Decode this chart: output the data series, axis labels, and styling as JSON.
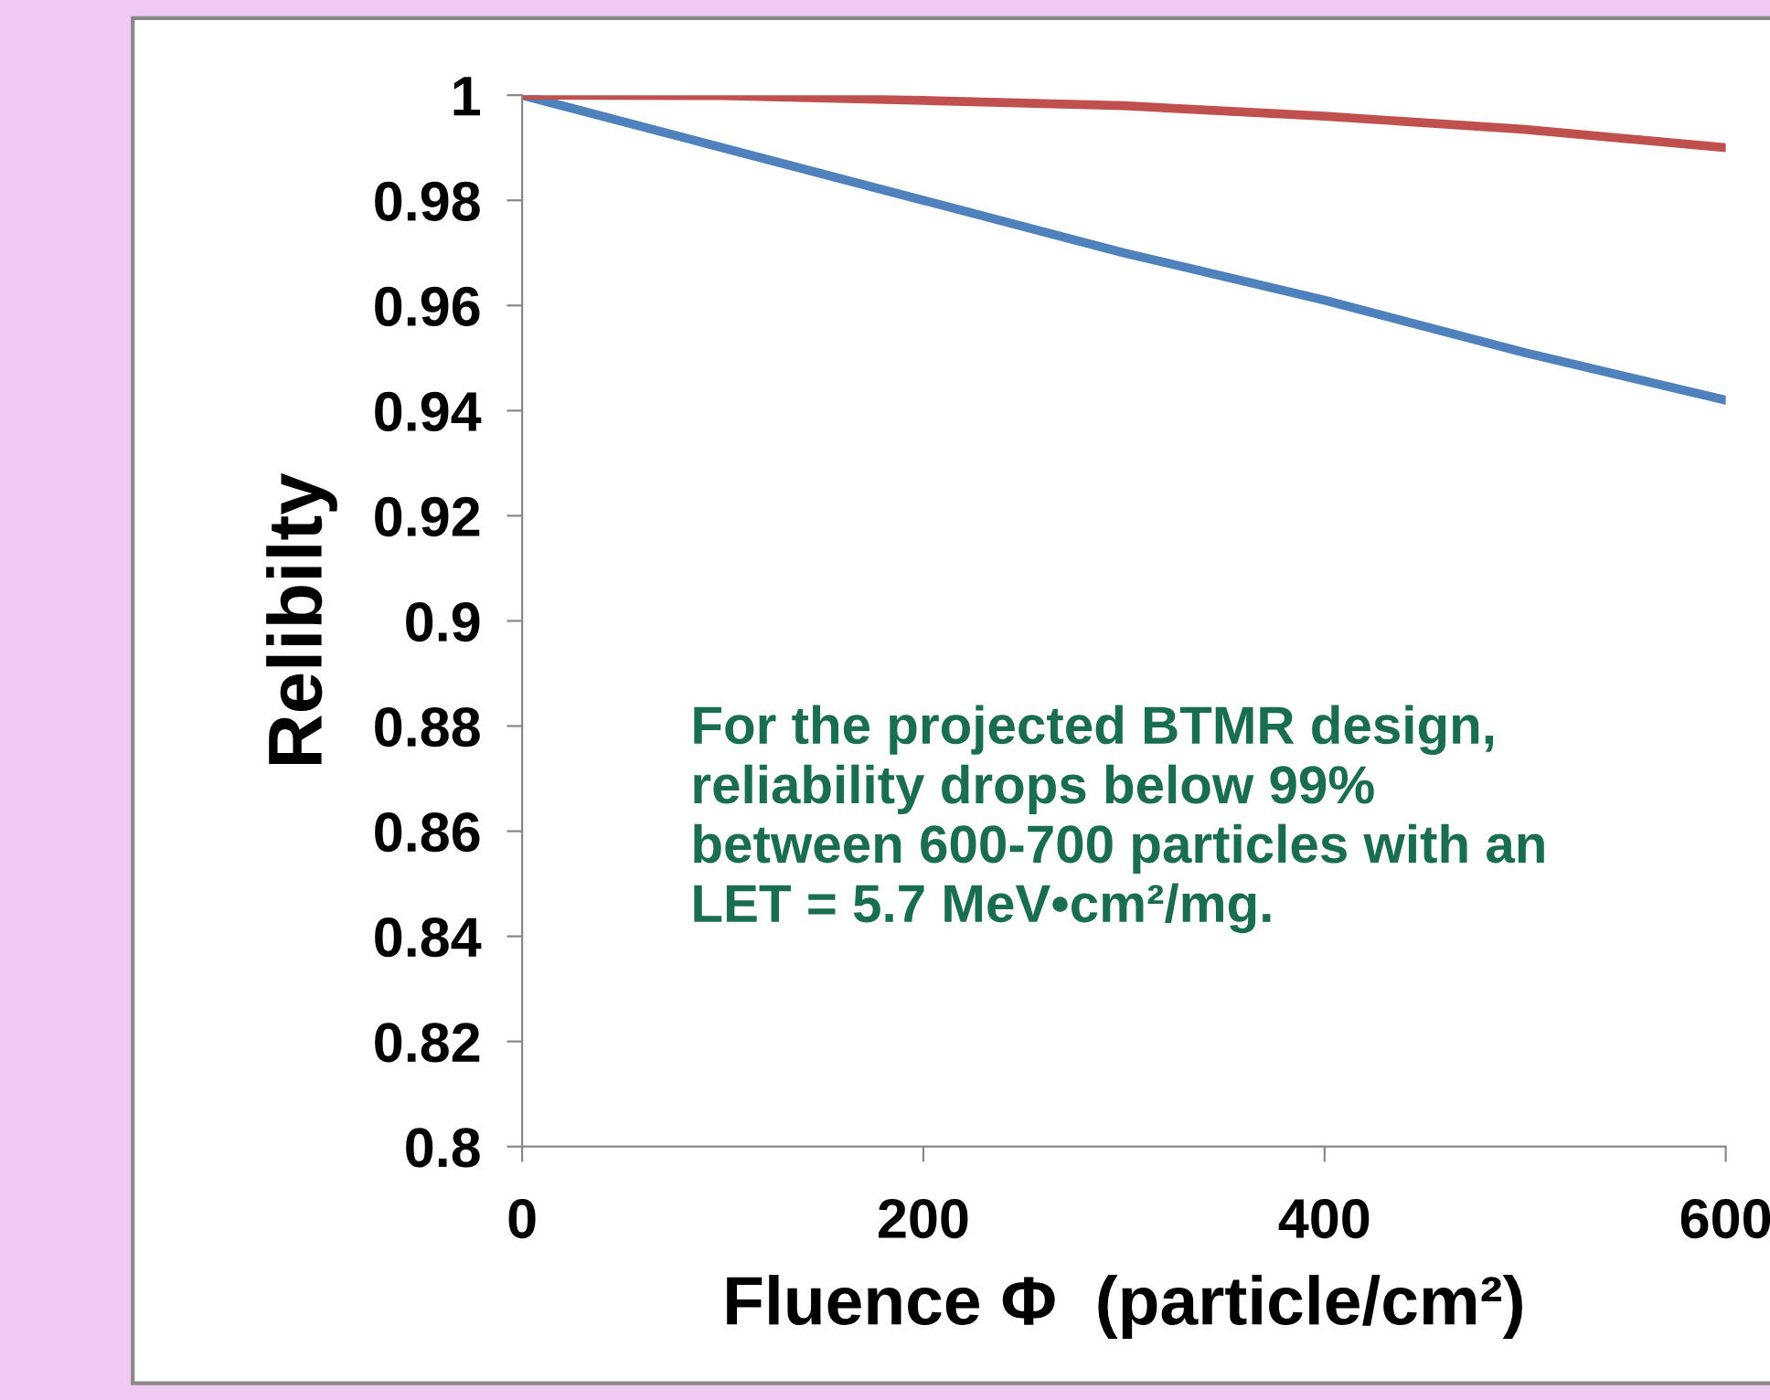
{
  "chart_data": {
    "type": "line",
    "xlabel": "Fluence Φ  (particle/cm²)",
    "ylabel": "Relibilty",
    "series": [
      {
        "color": "#4f81bd",
        "x": [
          0,
          100,
          200,
          300,
          400,
          500,
          600
        ],
        "values": [
          1,
          0.99,
          0.98,
          0.97,
          0.961,
          0.951,
          0.942
        ]
      },
      {
        "color": "#c0504d",
        "x": [
          0,
          100,
          200,
          300,
          400,
          500,
          600
        ],
        "values": [
          1,
          0.9999,
          0.999,
          0.998,
          0.996,
          0.9935,
          0.99
        ]
      }
    ],
    "xlim": [
      0,
      600
    ],
    "xticks": [
      0,
      200,
      400,
      600
    ],
    "ylim": [
      0.8,
      1
    ],
    "yticks": [
      0.8,
      0.82,
      0.84,
      0.86,
      0.88,
      0.9,
      0.92,
      0.94,
      0.96,
      0.98,
      1
    ],
    "grid": false,
    "legend": false,
    "marker": "none",
    "line_style": "solid",
    "annotations": [
      "For the projected BTMR design,\nreliability drops below 99%\nbetween 600-700 particles with an\nLET = 5.7 MeV•cm²/mg."
    ]
  }
}
